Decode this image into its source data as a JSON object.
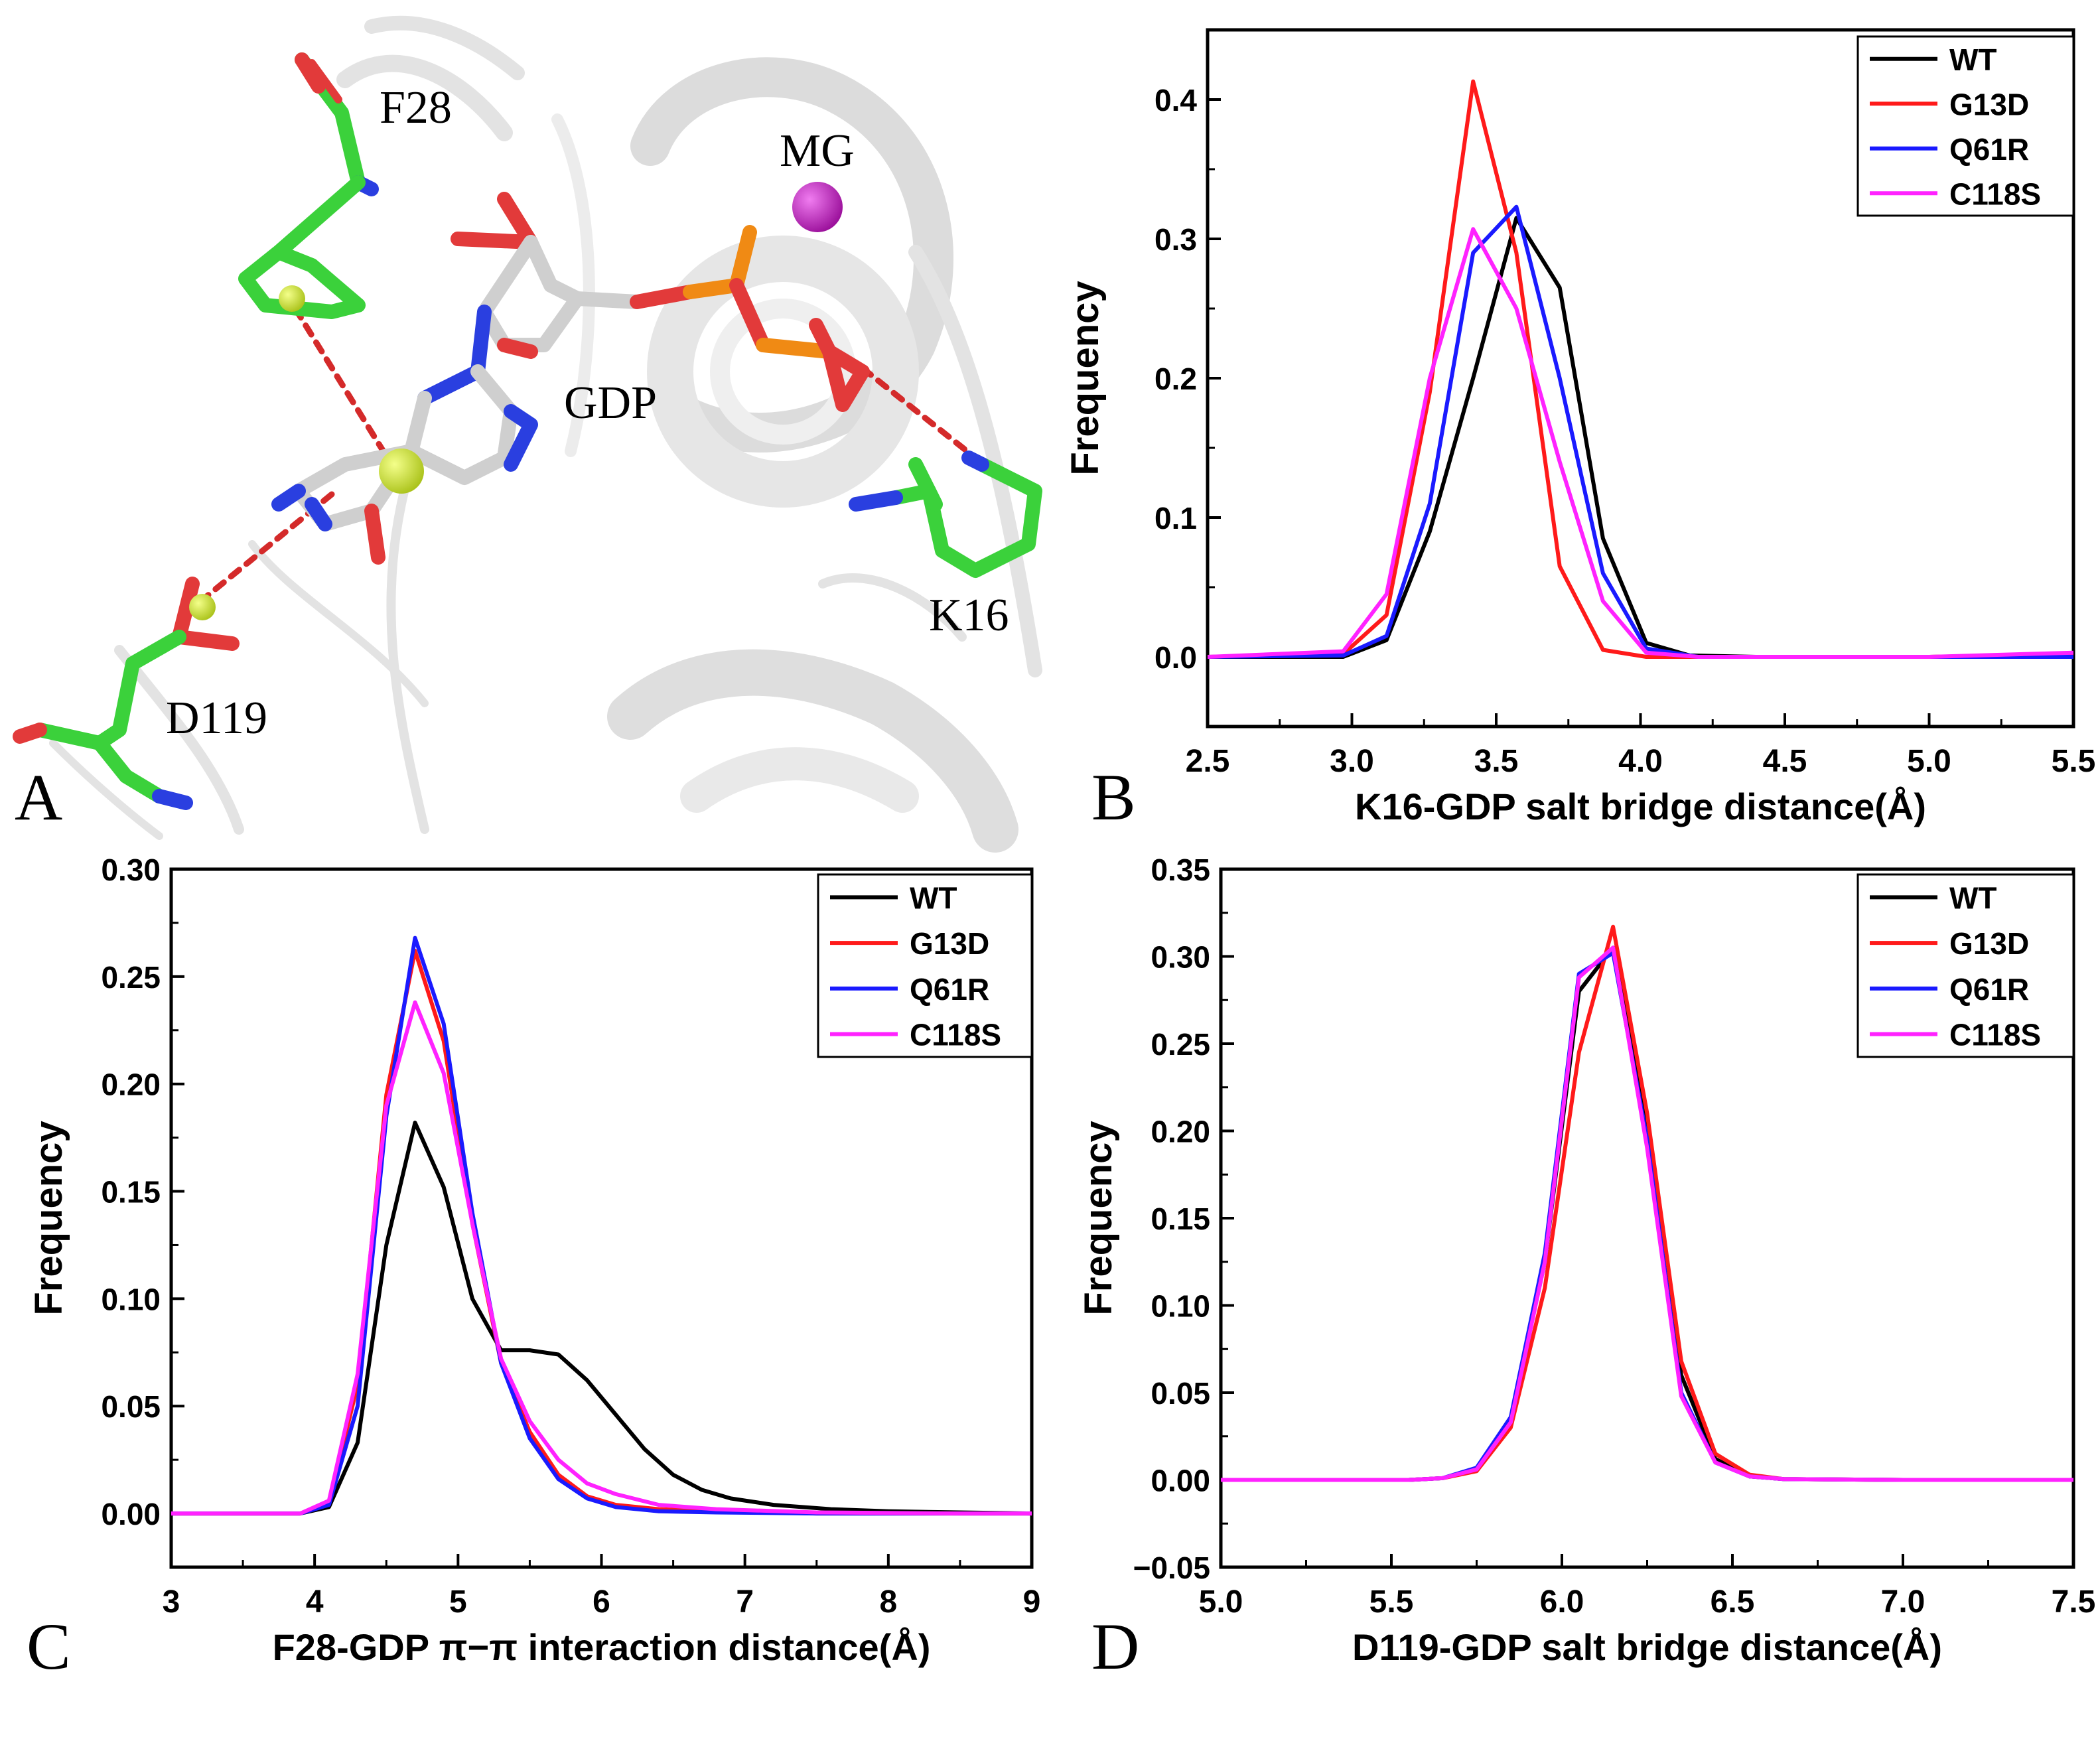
{
  "figure": {
    "panel_letters": [
      "A",
      "B",
      "C",
      "D"
    ],
    "series_colors": {
      "WT": "#000000",
      "G13D": "#ff1a1a",
      "Q61R": "#1a1aff",
      "C118S": "#ff22ff"
    }
  },
  "molecule": {
    "labels": {
      "f28": "F28",
      "mg": "MG",
      "gdp": "GDP",
      "k16": "K16",
      "d119": "D119"
    },
    "colors": {
      "carbon_residue": "#3bd13b",
      "carbon_gdp": "#cfcfcf",
      "oxygen": "#e23a3a",
      "nitrogen": "#2a3fe0",
      "phosphorus": "#f08a14",
      "magnesium": "#c21ec2",
      "centroid": "#d9ee2a",
      "hbond": "#d42a2a",
      "cartoon": "#e6e6e6"
    }
  },
  "chart_data": [
    {
      "id": "B",
      "type": "line",
      "title": "",
      "xlabel": "K16-GDP salt bridge distance(Å)",
      "ylabel": "Frequency",
      "xlim": [
        2.5,
        5.5
      ],
      "ylim": [
        -0.05,
        0.45
      ],
      "xticks": [
        2.5,
        3.0,
        3.5,
        4.0,
        4.5,
        5.0,
        5.5
      ],
      "xtick_labels": [
        "2.5",
        "3.0",
        "3.5",
        "4.0",
        "4.5",
        "5.0",
        "5.5"
      ],
      "yticks": [
        0.0,
        0.1,
        0.2,
        0.3,
        0.4
      ],
      "ytick_labels": [
        "0.0",
        "0.1",
        "0.2",
        "0.3",
        "0.4"
      ],
      "legend": "top-right",
      "series": [
        {
          "name": "WT",
          "color": "#000000",
          "x": [
            2.5,
            2.97,
            3.12,
            3.27,
            3.42,
            3.57,
            3.72,
            3.87,
            4.02,
            4.17,
            4.4,
            5.0,
            5.5
          ],
          "y": [
            0,
            0.0,
            0.012,
            0.09,
            0.2,
            0.315,
            0.265,
            0.085,
            0.01,
            0.001,
            0,
            0,
            0.001
          ]
        },
        {
          "name": "G13D",
          "color": "#ff1a1a",
          "x": [
            2.5,
            2.97,
            3.12,
            3.27,
            3.42,
            3.57,
            3.72,
            3.87,
            4.02,
            4.2,
            5.0,
            5.5
          ],
          "y": [
            0,
            0.002,
            0.03,
            0.19,
            0.413,
            0.29,
            0.065,
            0.005,
            0.0,
            0,
            0,
            0.002
          ]
        },
        {
          "name": "Q61R",
          "color": "#1a1aff",
          "x": [
            2.5,
            2.97,
            3.12,
            3.27,
            3.42,
            3.57,
            3.72,
            3.87,
            4.02,
            4.2,
            5.0,
            5.5
          ],
          "y": [
            0,
            0.001,
            0.015,
            0.11,
            0.29,
            0.323,
            0.2,
            0.06,
            0.006,
            0,
            0,
            0.0
          ]
        },
        {
          "name": "C118S",
          "color": "#ff22ff",
          "x": [
            2.5,
            2.97,
            3.12,
            3.27,
            3.42,
            3.57,
            3.72,
            3.87,
            4.02,
            4.2,
            5.0,
            5.5
          ],
          "y": [
            0,
            0.004,
            0.045,
            0.2,
            0.307,
            0.25,
            0.14,
            0.04,
            0.003,
            0,
            0,
            0.003
          ]
        }
      ]
    },
    {
      "id": "C",
      "type": "line",
      "title": "",
      "xlabel": "F28-GDP π−π interaction distance(Å)",
      "ylabel": "Frequency",
      "xlim": [
        3,
        9
      ],
      "ylim": [
        -0.025,
        0.3
      ],
      "xticks": [
        3,
        4,
        5,
        6,
        7,
        8,
        9
      ],
      "xtick_labels": [
        "3",
        "4",
        "5",
        "6",
        "7",
        "8",
        "9"
      ],
      "yticks": [
        0.0,
        0.05,
        0.1,
        0.15,
        0.2,
        0.25,
        0.3
      ],
      "ytick_labels": [
        "0.00",
        "0.05",
        "0.10",
        "0.15",
        "0.20",
        "0.25",
        "0.30"
      ],
      "legend": "top-right",
      "series": [
        {
          "name": "WT",
          "color": "#000000",
          "x": [
            3,
            3.9,
            4.1,
            4.3,
            4.5,
            4.7,
            4.9,
            5.1,
            5.3,
            5.5,
            5.7,
            5.9,
            6.1,
            6.3,
            6.5,
            6.7,
            6.9,
            7.2,
            7.6,
            8.0,
            8.5,
            9.0
          ],
          "y": [
            0,
            0,
            0.003,
            0.033,
            0.125,
            0.182,
            0.152,
            0.1,
            0.076,
            0.076,
            0.074,
            0.062,
            0.046,
            0.03,
            0.018,
            0.011,
            0.007,
            0.004,
            0.002,
            0.001,
            0.0005,
            0
          ]
        },
        {
          "name": "G13D",
          "color": "#ff1a1a",
          "x": [
            3,
            3.9,
            4.1,
            4.3,
            4.5,
            4.7,
            4.9,
            5.1,
            5.3,
            5.5,
            5.7,
            5.9,
            6.1,
            6.4,
            6.8,
            7.5,
            8.5,
            9.0
          ],
          "y": [
            0,
            0,
            0.005,
            0.06,
            0.195,
            0.262,
            0.22,
            0.135,
            0.07,
            0.038,
            0.018,
            0.008,
            0.004,
            0.002,
            0.001,
            0,
            0,
            0
          ]
        },
        {
          "name": "Q61R",
          "color": "#1a1aff",
          "x": [
            3,
            3.9,
            4.1,
            4.3,
            4.5,
            4.7,
            4.9,
            5.1,
            5.3,
            5.5,
            5.7,
            5.9,
            6.1,
            6.4,
            6.8,
            7.5,
            8.5,
            9.0
          ],
          "y": [
            0,
            0,
            0.004,
            0.05,
            0.185,
            0.268,
            0.228,
            0.14,
            0.07,
            0.035,
            0.016,
            0.007,
            0.003,
            0.001,
            0.0005,
            0,
            0,
            0
          ]
        },
        {
          "name": "C118S",
          "color": "#ff22ff",
          "x": [
            3,
            3.9,
            4.1,
            4.3,
            4.5,
            4.7,
            4.9,
            5.1,
            5.3,
            5.5,
            5.7,
            5.9,
            6.1,
            6.4,
            6.8,
            7.5,
            8.5,
            9.0
          ],
          "y": [
            0,
            0,
            0.006,
            0.065,
            0.19,
            0.238,
            0.205,
            0.135,
            0.072,
            0.043,
            0.025,
            0.014,
            0.009,
            0.004,
            0.002,
            0.0005,
            0,
            0
          ]
        }
      ]
    },
    {
      "id": "D",
      "type": "line",
      "title": "",
      "xlabel": "D119-GDP salt bridge distance(Å)",
      "ylabel": "Frequency",
      "xlim": [
        5.0,
        7.5
      ],
      "ylim": [
        -0.05,
        0.35
      ],
      "xticks": [
        5.0,
        5.5,
        6.0,
        6.5,
        7.0,
        7.5
      ],
      "xtick_labels": [
        "5.0",
        "5.5",
        "6.0",
        "6.5",
        "7.0",
        "7.5"
      ],
      "yticks": [
        -0.05,
        0.0,
        0.05,
        0.1,
        0.15,
        0.2,
        0.25,
        0.3,
        0.35
      ],
      "ytick_labels": [
        "−0.05",
        "0.00",
        "0.05",
        "0.10",
        "0.15",
        "0.20",
        "0.25",
        "0.30",
        "0.35"
      ],
      "legend": "top-right",
      "series": [
        {
          "name": "WT",
          "color": "#000000",
          "x": [
            5.0,
            5.55,
            5.65,
            5.75,
            5.85,
            5.95,
            6.05,
            6.15,
            6.25,
            6.35,
            6.45,
            6.55,
            6.65,
            7.0,
            7.5
          ],
          "y": [
            0,
            0,
            0.001,
            0.006,
            0.035,
            0.125,
            0.28,
            0.305,
            0.2,
            0.06,
            0.012,
            0.002,
            0.0005,
            0,
            0
          ]
        },
        {
          "name": "G13D",
          "color": "#ff1a1a",
          "x": [
            5.0,
            5.55,
            5.65,
            5.75,
            5.85,
            5.95,
            6.05,
            6.15,
            6.25,
            6.35,
            6.45,
            6.55,
            6.65,
            7.0,
            7.5
          ],
          "y": [
            0,
            0,
            0.001,
            0.005,
            0.03,
            0.11,
            0.245,
            0.317,
            0.21,
            0.068,
            0.015,
            0.003,
            0.0005,
            0,
            0
          ]
        },
        {
          "name": "Q61R",
          "color": "#1a1aff",
          "x": [
            5.0,
            5.55,
            5.65,
            5.75,
            5.85,
            5.95,
            6.05,
            6.15,
            6.25,
            6.35,
            6.45,
            6.55,
            6.65,
            7.0,
            7.5
          ],
          "y": [
            0,
            0,
            0.001,
            0.007,
            0.036,
            0.13,
            0.29,
            0.302,
            0.195,
            0.05,
            0.01,
            0.002,
            0.0005,
            0,
            0
          ]
        },
        {
          "name": "C118S",
          "color": "#ff22ff",
          "x": [
            5.0,
            5.55,
            5.65,
            5.75,
            5.85,
            5.95,
            6.05,
            6.15,
            6.25,
            6.35,
            6.45,
            6.55,
            6.65,
            7.0,
            7.5
          ],
          "y": [
            0,
            0,
            0.001,
            0.006,
            0.033,
            0.125,
            0.288,
            0.305,
            0.19,
            0.048,
            0.01,
            0.002,
            0.0005,
            0,
            0
          ]
        }
      ]
    }
  ]
}
